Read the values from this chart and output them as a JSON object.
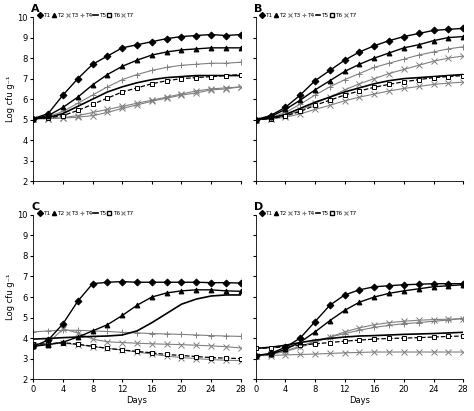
{
  "subplots": [
    "A",
    "B",
    "C",
    "D"
  ],
  "days": [
    0,
    2,
    4,
    6,
    8,
    10,
    12,
    14,
    16,
    18,
    20,
    22,
    24,
    26,
    28
  ],
  "A": {
    "T1": [
      5.05,
      5.3,
      6.2,
      7.0,
      7.7,
      8.1,
      8.5,
      8.65,
      8.8,
      8.95,
      9.05,
      9.1,
      9.15,
      9.1,
      9.15
    ],
    "T2": [
      5.05,
      5.2,
      5.6,
      6.1,
      6.7,
      7.2,
      7.6,
      7.9,
      8.15,
      8.3,
      8.4,
      8.45,
      8.5,
      8.5,
      8.5
    ],
    "T3": [
      5.05,
      5.05,
      5.1,
      5.2,
      5.35,
      5.5,
      5.65,
      5.8,
      5.95,
      6.1,
      6.25,
      6.4,
      6.5,
      6.55,
      6.6
    ],
    "T4": [
      5.05,
      5.15,
      5.4,
      5.8,
      6.2,
      6.6,
      6.95,
      7.2,
      7.4,
      7.55,
      7.65,
      7.7,
      7.75,
      7.75,
      7.8
    ],
    "T5": [
      5.05,
      5.1,
      5.3,
      5.65,
      6.0,
      6.35,
      6.6,
      6.8,
      6.95,
      7.05,
      7.1,
      7.15,
      7.15,
      7.15,
      7.15
    ],
    "T6": [
      5.05,
      5.08,
      5.2,
      5.45,
      5.75,
      6.05,
      6.35,
      6.55,
      6.75,
      6.9,
      7.0,
      7.05,
      7.1,
      7.15,
      7.2
    ],
    "T7": [
      5.05,
      5.05,
      5.08,
      5.12,
      5.2,
      5.35,
      5.55,
      5.72,
      5.9,
      6.05,
      6.2,
      6.3,
      6.45,
      6.5,
      6.6
    ]
  },
  "B": {
    "T1": [
      5.0,
      5.2,
      5.6,
      6.2,
      6.9,
      7.4,
      7.9,
      8.3,
      8.6,
      8.85,
      9.05,
      9.2,
      9.35,
      9.4,
      9.45
    ],
    "T2": [
      5.0,
      5.15,
      5.5,
      5.95,
      6.45,
      6.9,
      7.35,
      7.7,
      8.0,
      8.25,
      8.5,
      8.65,
      8.85,
      9.0,
      9.05
    ],
    "T3": [
      5.0,
      5.05,
      5.2,
      5.45,
      5.8,
      6.1,
      6.45,
      6.75,
      7.0,
      7.25,
      7.45,
      7.65,
      7.85,
      8.0,
      8.1
    ],
    "T4": [
      5.0,
      5.1,
      5.35,
      5.75,
      6.2,
      6.6,
      6.95,
      7.25,
      7.55,
      7.75,
      7.95,
      8.15,
      8.3,
      8.45,
      8.55
    ],
    "T5": [
      5.0,
      5.08,
      5.25,
      5.55,
      5.85,
      6.1,
      6.35,
      6.55,
      6.75,
      6.9,
      7.0,
      7.05,
      7.1,
      7.15,
      7.2
    ],
    "T6": [
      5.0,
      5.05,
      5.18,
      5.4,
      5.7,
      5.95,
      6.2,
      6.4,
      6.58,
      6.72,
      6.85,
      6.95,
      7.05,
      7.1,
      7.15
    ],
    "T7": [
      5.0,
      5.03,
      5.12,
      5.28,
      5.5,
      5.7,
      5.92,
      6.1,
      6.25,
      6.4,
      6.52,
      6.62,
      6.72,
      6.78,
      6.83
    ]
  },
  "C": {
    "T1": [
      3.6,
      3.9,
      4.7,
      5.8,
      6.65,
      6.72,
      6.75,
      6.72,
      6.72,
      6.72,
      6.72,
      6.72,
      6.7,
      6.7,
      6.68
    ],
    "T2": [
      3.6,
      3.68,
      3.8,
      4.05,
      4.35,
      4.65,
      5.1,
      5.6,
      6.0,
      6.2,
      6.3,
      6.35,
      6.35,
      6.3,
      6.28
    ],
    "T3": [
      3.65,
      3.75,
      4.45,
      4.25,
      3.95,
      3.82,
      3.78,
      3.75,
      3.72,
      3.7,
      3.68,
      3.65,
      3.62,
      3.58,
      3.52
    ],
    "T4": [
      4.3,
      4.35,
      4.38,
      4.38,
      4.35,
      4.32,
      4.28,
      4.25,
      4.22,
      4.2,
      4.18,
      4.15,
      4.12,
      4.1,
      4.08
    ],
    "T5": [
      3.95,
      3.98,
      4.02,
      4.05,
      4.08,
      4.1,
      4.15,
      4.35,
      4.75,
      5.2,
      5.65,
      5.9,
      6.05,
      6.1,
      6.1
    ],
    "T6": [
      3.7,
      3.72,
      3.78,
      3.7,
      3.6,
      3.5,
      3.42,
      3.35,
      3.28,
      3.2,
      3.15,
      3.1,
      3.05,
      3.02,
      3.0
    ],
    "T7": [
      3.65,
      3.7,
      3.75,
      3.68,
      3.58,
      3.5,
      3.42,
      3.32,
      3.22,
      3.12,
      3.05,
      3.0,
      2.95,
      2.92,
      2.9
    ]
  },
  "D": {
    "T1": [
      3.15,
      3.25,
      3.55,
      4.0,
      4.8,
      5.6,
      6.1,
      6.35,
      6.5,
      6.55,
      6.6,
      6.62,
      6.65,
      6.65,
      6.65
    ],
    "T2": [
      3.15,
      3.22,
      3.45,
      3.8,
      4.3,
      4.85,
      5.35,
      5.75,
      6.0,
      6.18,
      6.3,
      6.4,
      6.5,
      6.55,
      6.6
    ],
    "T3": [
      3.15,
      3.2,
      3.35,
      3.55,
      3.8,
      4.05,
      4.3,
      4.5,
      4.65,
      4.75,
      4.82,
      4.87,
      4.9,
      4.92,
      4.95
    ],
    "T4": [
      3.15,
      3.22,
      3.38,
      3.6,
      3.85,
      4.05,
      4.22,
      4.38,
      4.52,
      4.62,
      4.7,
      4.75,
      4.82,
      4.88,
      4.95
    ],
    "T5": [
      3.5,
      3.55,
      3.65,
      3.78,
      3.9,
      3.98,
      4.05,
      4.1,
      4.12,
      4.15,
      4.18,
      4.2,
      4.22,
      4.25,
      4.28
    ],
    "T6": [
      3.5,
      3.52,
      3.58,
      3.65,
      3.72,
      3.78,
      3.85,
      3.9,
      3.95,
      3.98,
      4.0,
      4.02,
      4.05,
      4.08,
      4.1
    ],
    "T7": [
      3.15,
      3.15,
      3.18,
      3.2,
      3.22,
      3.25,
      3.28,
      3.3,
      3.32,
      3.32,
      3.32,
      3.32,
      3.32,
      3.32,
      3.32
    ]
  },
  "ylim": [
    2,
    10
  ],
  "yticks": [
    2,
    3,
    4,
    5,
    6,
    7,
    8,
    9,
    10
  ],
  "xticks": [
    0,
    4,
    8,
    12,
    16,
    20,
    24,
    28
  ],
  "xlabel": "Days",
  "ylabel": "Log cfu g⁻¹"
}
